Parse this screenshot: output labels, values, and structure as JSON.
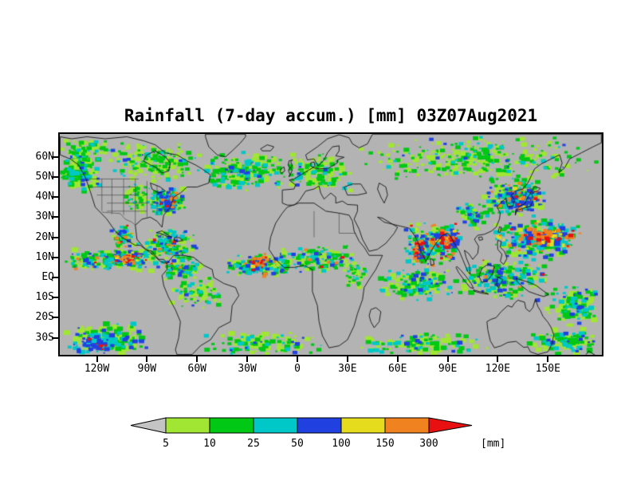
{
  "chart_data": {
    "type": "heatmap",
    "title": "Rainfall (7-day accum.) [mm] 03Z07Aug2021",
    "map_background": "#b3b3b3",
    "projection": {
      "lon_min": -142.2,
      "lon_max": 182.3,
      "lat_min": -38.5,
      "lat_max": 71.4
    },
    "lat_ticks": [
      {
        "label": "60N",
        "value": 60
      },
      {
        "label": "50N",
        "value": 50
      },
      {
        "label": "40N",
        "value": 40
      },
      {
        "label": "30N",
        "value": 30
      },
      {
        "label": "20N",
        "value": 20
      },
      {
        "label": "10N",
        "value": 10
      },
      {
        "label": "EQ",
        "value": 0
      },
      {
        "label": "10S",
        "value": -10
      },
      {
        "label": "20S",
        "value": -20
      },
      {
        "label": "30S",
        "value": -30
      }
    ],
    "lon_ticks": [
      {
        "label": "120W",
        "value": -120
      },
      {
        "label": "90W",
        "value": -90
      },
      {
        "label": "60W",
        "value": -60
      },
      {
        "label": "30W",
        "value": -30
      },
      {
        "label": "0",
        "value": 0
      },
      {
        "label": "30E",
        "value": 30
      },
      {
        "label": "60E",
        "value": 60
      },
      {
        "label": "90E",
        "value": 90
      },
      {
        "label": "120E",
        "value": 120
      },
      {
        "label": "150E",
        "value": 150
      }
    ],
    "legend": {
      "unit": "[mm]",
      "levels": [
        5,
        10,
        25,
        50,
        100,
        150,
        300
      ],
      "segment_colors": [
        "#a0e632",
        "#00c814",
        "#00c8c8",
        "#2041e0",
        "#e6dc1e",
        "#f08220"
      ],
      "under_color": "#c4c4c4",
      "over_color": "#e81010"
    },
    "rain_bands": [
      {
        "lon": [
          -142,
          -118
        ],
        "lat": [
          42,
          64
        ],
        "n": 170,
        "blob": 8,
        "mix": {
          "lg": 0.4,
          "gr": 0.35,
          "cy": 0.18,
          "bl": 0.07
        }
      },
      {
        "lon": [
          -142,
          -112
        ],
        "lat": [
          56,
          70
        ],
        "n": 90,
        "blob": 7,
        "mix": {
          "lg": 0.5,
          "gr": 0.4,
          "cy": 0.1
        }
      },
      {
        "lon": [
          -116,
          -56
        ],
        "lat": [
          47,
          68
        ],
        "n": 190,
        "blob": 7,
        "mix": {
          "lg": 0.5,
          "gr": 0.36,
          "cy": 0.11,
          "bl": 0.03
        }
      },
      {
        "lon": [
          -90,
          -66
        ],
        "lat": [
          31,
          45
        ],
        "n": 150,
        "blob": 8,
        "mix": {
          "lg": 0.3,
          "gr": 0.32,
          "cy": 0.2,
          "bl": 0.13,
          "or": 0.04,
          "re": 0.01
        }
      },
      {
        "lon": [
          -81,
          -71
        ],
        "lat": [
          33,
          42
        ],
        "n": 60,
        "blob": 8,
        "mix": {
          "cy": 0.35,
          "bl": 0.45,
          "or": 0.15,
          "re": 0.05
        }
      },
      {
        "lon": [
          -106,
          -88
        ],
        "lat": [
          32,
          47
        ],
        "n": 80,
        "blob": 6,
        "mix": {
          "lg": 0.55,
          "gr": 0.35,
          "cy": 0.1
        }
      },
      {
        "lon": [
          -58,
          -6
        ],
        "lat": [
          43,
          63
        ],
        "n": 210,
        "blob": 8,
        "mix": {
          "lg": 0.42,
          "gr": 0.36,
          "cy": 0.16,
          "bl": 0.06
        }
      },
      {
        "lon": [
          -8,
          34
        ],
        "lat": [
          42,
          62
        ],
        "n": 160,
        "blob": 7,
        "mix": {
          "lg": 0.5,
          "gr": 0.36,
          "cy": 0.11,
          "bl": 0.03
        }
      },
      {
        "lon": [
          34,
          180
        ],
        "lat": [
          48,
          70
        ],
        "n": 340,
        "blob": 7,
        "mix": {
          "lg": 0.5,
          "gr": 0.36,
          "cy": 0.11,
          "bl": 0.03
        }
      },
      {
        "lon": [
          110,
          148
        ],
        "lat": [
          30,
          50
        ],
        "n": 200,
        "blob": 8,
        "mix": {
          "lg": 0.28,
          "gr": 0.3,
          "cy": 0.2,
          "bl": 0.15,
          "or": 0.05,
          "re": 0.02
        }
      },
      {
        "lon": [
          125,
          147
        ],
        "lat": [
          32,
          46
        ],
        "n": 80,
        "blob": 8,
        "mix": {
          "cy": 0.3,
          "bl": 0.4,
          "ye": 0.05,
          "or": 0.18,
          "re": 0.07
        }
      },
      {
        "lon": [
          116,
          170
        ],
        "lat": [
          8,
          30
        ],
        "n": 240,
        "blob": 8,
        "mix": {
          "lg": 0.22,
          "gr": 0.28,
          "cy": 0.22,
          "bl": 0.16,
          "ye": 0.03,
          "or": 0.06,
          "re": 0.03
        }
      },
      {
        "lon": [
          133,
          166
        ],
        "lat": [
          14,
          27
        ],
        "n": 130,
        "blob": 10,
        "mix": {
          "gr": 0.1,
          "cy": 0.18,
          "bl": 0.2,
          "ye": 0.1,
          "or": 0.3,
          "re": 0.12
        }
      },
      {
        "lon": [
          64,
          98
        ],
        "lat": [
          5,
          28
        ],
        "n": 230,
        "blob": 8,
        "mix": {
          "lg": 0.2,
          "gr": 0.26,
          "cy": 0.22,
          "bl": 0.18,
          "ye": 0.03,
          "or": 0.07,
          "re": 0.04
        }
      },
      {
        "lon": [
          83,
          98
        ],
        "lat": [
          14,
          24
        ],
        "n": 70,
        "blob": 9,
        "mix": {
          "cy": 0.15,
          "bl": 0.3,
          "ye": 0.05,
          "or": 0.28,
          "re": 0.22
        }
      },
      {
        "lon": [
          69,
          76
        ],
        "lat": [
          8,
          20
        ],
        "n": 45,
        "blob": 8,
        "mix": {
          "bl": 0.35,
          "or": 0.35,
          "re": 0.3
        }
      },
      {
        "lon": [
          46,
          98
        ],
        "lat": [
          -12,
          5
        ],
        "n": 170,
        "blob": 8,
        "mix": {
          "lg": 0.4,
          "gr": 0.3,
          "cy": 0.2,
          "bl": 0.1
        }
      },
      {
        "lon": [
          95,
          152
        ],
        "lat": [
          -12,
          10
        ],
        "n": 230,
        "blob": 8,
        "mix": {
          "lg": 0.33,
          "gr": 0.3,
          "cy": 0.2,
          "bl": 0.13,
          "or": 0.03,
          "re": 0.01
        }
      },
      {
        "lon": [
          148,
          182
        ],
        "lat": [
          -24,
          -4
        ],
        "n": 140,
        "blob": 8,
        "mix": {
          "lg": 0.42,
          "gr": 0.3,
          "cy": 0.18,
          "bl": 0.1
        }
      },
      {
        "lon": [
          -142,
          -80
        ],
        "lat": [
          3,
          14
        ],
        "n": 210,
        "blob": 8,
        "mix": {
          "lg": 0.28,
          "gr": 0.3,
          "cy": 0.22,
          "bl": 0.12,
          "or": 0.06,
          "re": 0.02
        }
      },
      {
        "lon": [
          -112,
          -90
        ],
        "lat": [
          6,
          13
        ],
        "n": 55,
        "blob": 8,
        "mix": {
          "bl": 0.3,
          "ye": 0.1,
          "or": 0.4,
          "re": 0.2
        }
      },
      {
        "lon": [
          -98,
          -58
        ],
        "lat": [
          8,
          24
        ],
        "n": 170,
        "blob": 7,
        "mix": {
          "lg": 0.3,
          "gr": 0.3,
          "cy": 0.2,
          "bl": 0.12,
          "or": 0.06,
          "re": 0.02
        }
      },
      {
        "lon": [
          -79,
          -71
        ],
        "lat": [
          2,
          9
        ],
        "n": 30,
        "blob": 7,
        "mix": {
          "bl": 0.4,
          "or": 0.4,
          "re": 0.2
        }
      },
      {
        "lon": [
          -80,
          -56
        ],
        "lat": [
          -2,
          10
        ],
        "n": 90,
        "blob": 7,
        "mix": {
          "lg": 0.35,
          "gr": 0.32,
          "cy": 0.2,
          "bl": 0.1,
          "or": 0.03
        }
      },
      {
        "lon": [
          -76,
          -44
        ],
        "lat": [
          -16,
          0
        ],
        "n": 90,
        "blob": 7,
        "mix": {
          "lg": 0.5,
          "gr": 0.36,
          "cy": 0.11,
          "bl": 0.03
        }
      },
      {
        "lon": [
          -46,
          -4
        ],
        "lat": [
          0,
          12
        ],
        "n": 150,
        "blob": 8,
        "mix": {
          "lg": 0.28,
          "gr": 0.3,
          "cy": 0.24,
          "bl": 0.1,
          "or": 0.06,
          "re": 0.02
        }
      },
      {
        "lon": [
          -32,
          -14
        ],
        "lat": [
          4,
          11
        ],
        "n": 40,
        "blob": 8,
        "mix": {
          "bl": 0.3,
          "ye": 0.1,
          "or": 0.4,
          "re": 0.2
        }
      },
      {
        "lon": [
          -17,
          36
        ],
        "lat": [
          2,
          16
        ],
        "n": 180,
        "blob": 7,
        "mix": {
          "lg": 0.34,
          "gr": 0.3,
          "cy": 0.2,
          "bl": 0.11,
          "or": 0.04,
          "re": 0.01
        }
      },
      {
        "lon": [
          28,
          42
        ],
        "lat": [
          -6,
          8
        ],
        "n": 50,
        "blob": 6,
        "mix": {
          "lg": 0.5,
          "gr": 0.35,
          "cy": 0.15
        }
      },
      {
        "lon": [
          -60,
          16
        ],
        "lat": [
          -38.5,
          -27
        ],
        "n": 130,
        "blob": 8,
        "mix": {
          "lg": 0.48,
          "gr": 0.3,
          "cy": 0.16,
          "bl": 0.06
        }
      },
      {
        "lon": [
          -142,
          -84
        ],
        "lat": [
          -38.5,
          -22
        ],
        "n": 150,
        "blob": 9,
        "mix": {
          "lg": 0.38,
          "gr": 0.3,
          "cy": 0.2,
          "bl": 0.12
        }
      },
      {
        "lon": [
          -138,
          -108
        ],
        "lat": [
          -38,
          -27
        ],
        "n": 55,
        "blob": 9,
        "mix": {
          "cy": 0.4,
          "bl": 0.5,
          "re": 0.1
        }
      },
      {
        "lon": [
          34,
          114
        ],
        "lat": [
          -38.5,
          -27
        ],
        "n": 140,
        "blob": 8,
        "mix": {
          "lg": 0.48,
          "gr": 0.3,
          "cy": 0.16,
          "bl": 0.06
        }
      },
      {
        "lon": [
          138,
          182
        ],
        "lat": [
          -38.5,
          -25
        ],
        "n": 120,
        "blob": 8,
        "mix": {
          "lg": 0.44,
          "gr": 0.3,
          "cy": 0.17,
          "bl": 0.09
        }
      },
      {
        "lon": [
          95,
          114
        ],
        "lat": [
          24,
          38
        ],
        "n": 80,
        "blob": 7,
        "mix": {
          "lg": 0.38,
          "gr": 0.3,
          "cy": 0.2,
          "bl": 0.12
        }
      },
      {
        "lon": [
          -113,
          -97
        ],
        "lat": [
          14,
          26
        ],
        "n": 75,
        "blob": 7,
        "mix": {
          "lg": 0.25,
          "gr": 0.3,
          "cy": 0.2,
          "bl": 0.12,
          "or": 0.1,
          "re": 0.03
        }
      }
    ]
  }
}
